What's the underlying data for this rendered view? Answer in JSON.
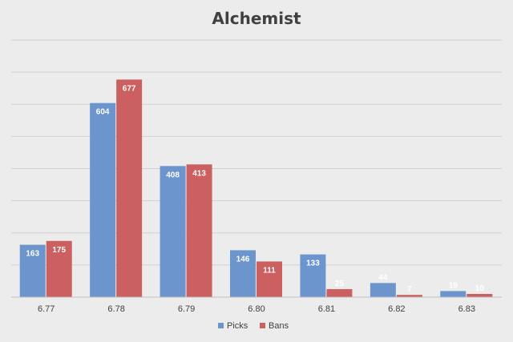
{
  "chart_data": {
    "type": "bar",
    "title": "Alchemist",
    "categories": [
      "6.77",
      "6.78",
      "6.79",
      "6.80",
      "6.81",
      "6.82",
      "6.83"
    ],
    "series": [
      {
        "name": "Picks",
        "values": [
          163,
          604,
          408,
          146,
          133,
          44,
          19
        ],
        "color": "#6d95cd"
      },
      {
        "name": "Bans",
        "values": [
          175,
          677,
          413,
          111,
          25,
          7,
          10
        ],
        "color": "#cc5f5f"
      }
    ],
    "ylim": [
      0,
      800
    ],
    "grid": true,
    "y_tick_labels_visible": false,
    "legend_position": "bottom"
  }
}
